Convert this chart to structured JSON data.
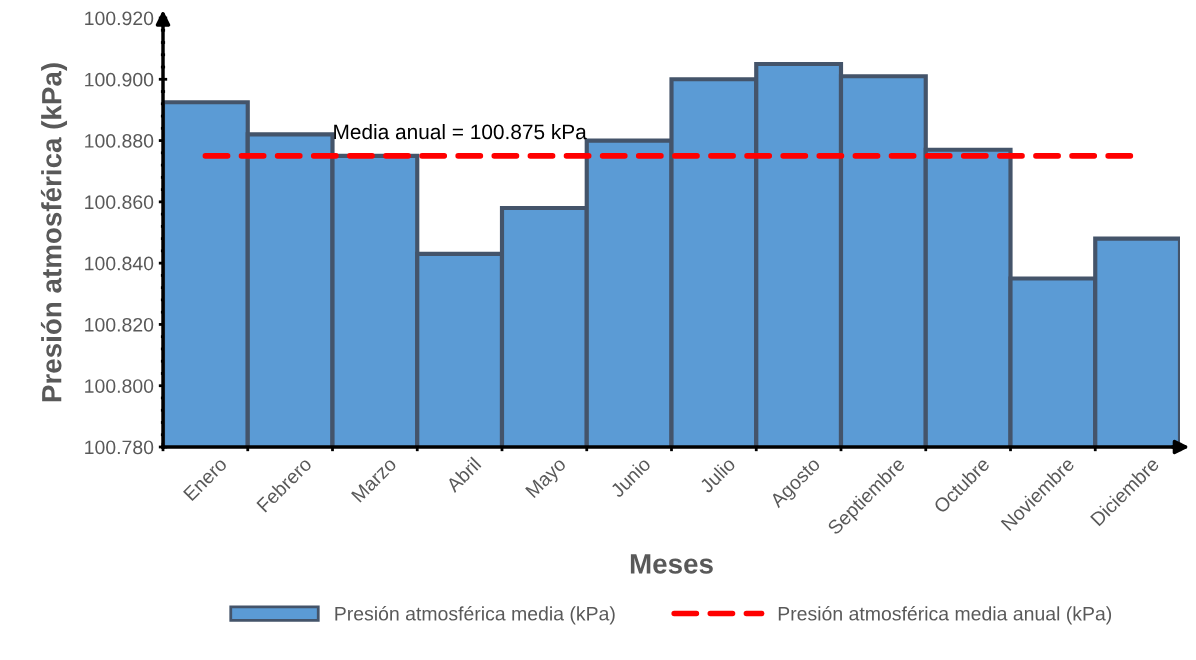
{
  "chart_data": {
    "type": "bar",
    "xlabel": "Meses",
    "ylabel": "Presión atmosférica (kPa)",
    "categories": [
      "Enero",
      "Febrero",
      "Marzo",
      "Abril",
      "Mayo",
      "Junio",
      "Julio",
      "Agosto",
      "Septiembre",
      "Octubre",
      "Noviembre",
      "Diciembre"
    ],
    "series": [
      {
        "name": "Presión atmosférica media (kPa)",
        "color": "#5b9bd5",
        "values": [
          100.8925,
          100.882,
          100.875,
          100.843,
          100.858,
          100.88,
          100.9,
          100.905,
          100.901,
          100.877,
          100.835,
          100.848
        ]
      },
      {
        "name": "Presión atmosférica media anual (kPa)",
        "type": "line",
        "color": "#ff0000",
        "line_style": "dashed",
        "values": [
          100.875,
          100.875,
          100.875,
          100.875,
          100.875,
          100.875,
          100.875,
          100.875,
          100.875,
          100.875,
          100.875,
          100.875
        ]
      }
    ],
    "annotations": [
      {
        "text": "Media anual = 100.875 kPa",
        "x": "Abril",
        "y": 100.875
      }
    ],
    "ylim": [
      100.78,
      100.92
    ],
    "yticks": [
      {
        "value": 100.78,
        "label": "100.780"
      },
      {
        "value": 100.8,
        "label": "100.800"
      },
      {
        "value": 100.82,
        "label": "100.820"
      },
      {
        "value": 100.84,
        "label": "100.840"
      },
      {
        "value": 100.86,
        "label": "100.860"
      },
      {
        "value": 100.88,
        "label": "100.880"
      },
      {
        "value": 100.9,
        "label": "100.900"
      },
      {
        "value": 100.92,
        "label": "100.920"
      }
    ],
    "grid": false,
    "legend": "bottom"
  }
}
